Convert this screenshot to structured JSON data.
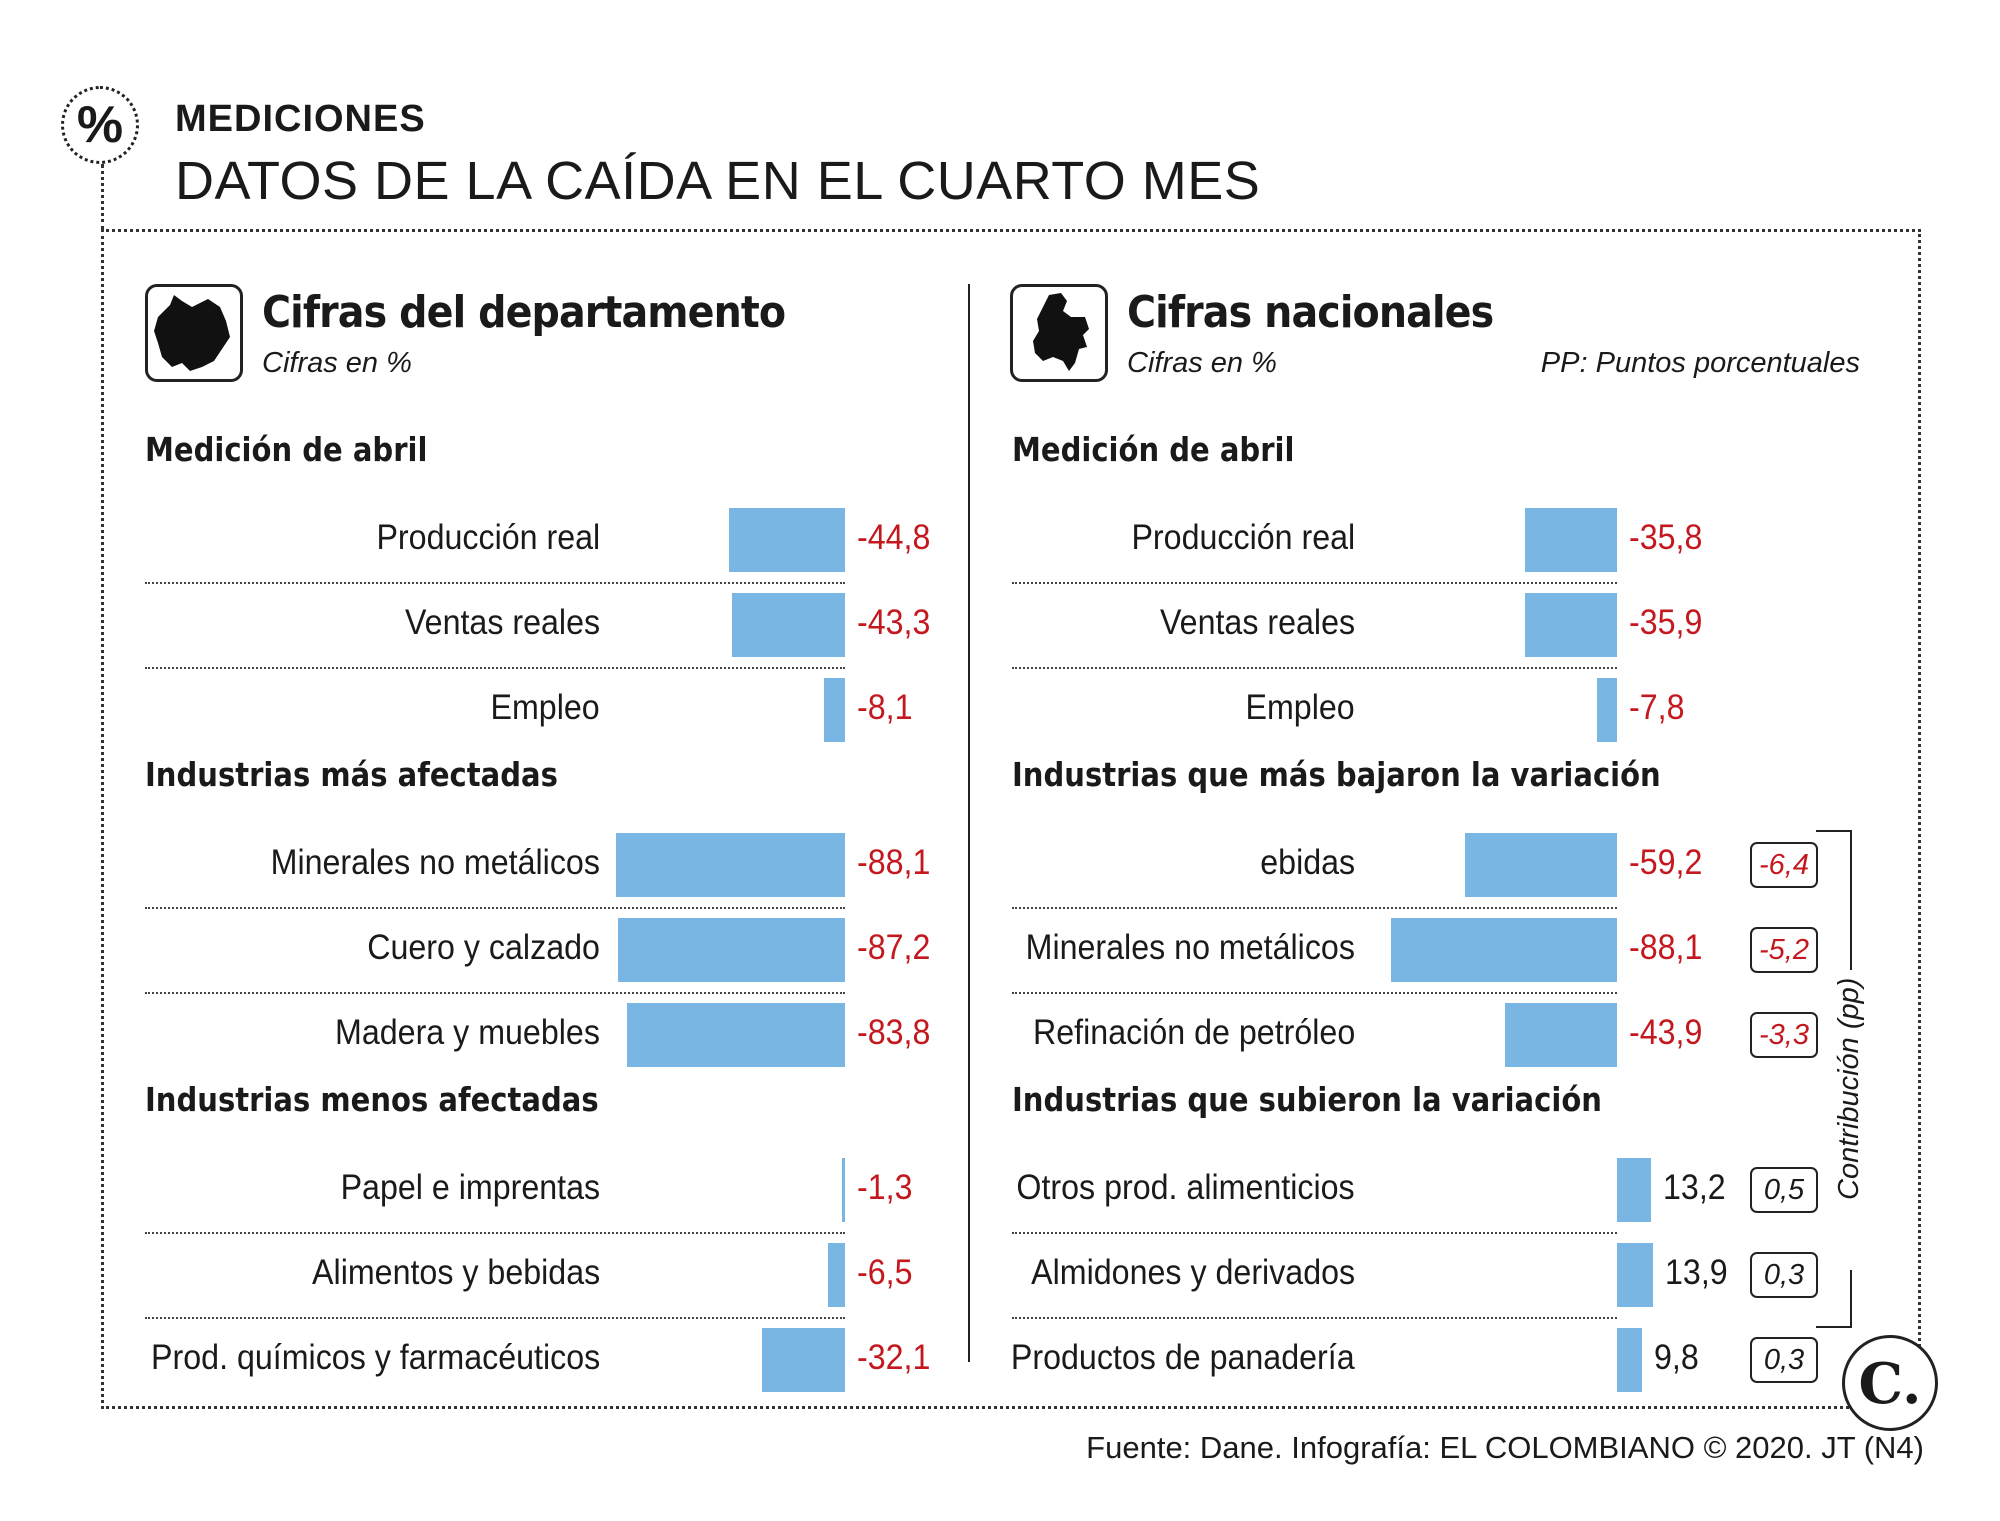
{
  "header": {
    "icon": "percent-icon",
    "kicker": "MEDICIONES",
    "title": "DATOS DE LA CAÍDA EN EL CUARTO MES"
  },
  "left": {
    "title": "Cifras del departamento",
    "subtitle": "Cifras en %",
    "map_icon": "antioquia-map-icon",
    "sections": [
      {
        "title": "Medición de abril",
        "rows": [
          {
            "label": "Producción real",
            "value": -44.8,
            "text": "-44,8"
          },
          {
            "label": "Ventas reales",
            "value": -43.3,
            "text": "-43,3"
          },
          {
            "label": "Empleo",
            "value": -8.1,
            "text": "-8,1"
          }
        ]
      },
      {
        "title": "Industrias más afectadas",
        "rows": [
          {
            "label": "Minerales no metálicos",
            "value": -88.1,
            "text": "-88,1"
          },
          {
            "label": "Cuero y calzado",
            "value": -87.2,
            "text": "-87,2"
          },
          {
            "label": "Madera y muebles",
            "value": -83.8,
            "text": "-83,8"
          }
        ]
      },
      {
        "title": "Industrias menos afectadas",
        "rows": [
          {
            "label": "Papel e imprentas",
            "value": -1.3,
            "text": "-1,3"
          },
          {
            "label": "Alimentos y bebidas",
            "value": -6.5,
            "text": "-6,5"
          },
          {
            "label": "Prod. químicos y farmacéuticos",
            "value": -32.1,
            "text": "-32,1"
          }
        ]
      }
    ]
  },
  "right": {
    "title": "Cifras nacionales",
    "subtitle": "Cifras en %",
    "note": "PP: Puntos porcentuales",
    "map_icon": "colombia-map-icon",
    "contribution_label": "Contribución (pp)",
    "sections": [
      {
        "title": "Medición de abril",
        "rows": [
          {
            "label": "Producción real",
            "value": -35.8,
            "text": "-35,8"
          },
          {
            "label": "Ventas reales",
            "value": -35.9,
            "text": "-35,9"
          },
          {
            "label": "Empleo",
            "value": -7.8,
            "text": "-7,8"
          }
        ]
      },
      {
        "title": "Industrias que más bajaron la variación",
        "rows": [
          {
            "label": "ebidas",
            "value": -59.2,
            "text": "-59,2",
            "pp": "-6,4"
          },
          {
            "label": "Minerales no metálicos",
            "value": -88.1,
            "text": "-88,1",
            "pp": "-5,2"
          },
          {
            "label": "Refinación de petróleo",
            "value": -43.9,
            "text": "-43,9",
            "pp": "-3,3"
          }
        ]
      },
      {
        "title": "Industrias que subieron la variación",
        "rows": [
          {
            "label": "Otros prod. alimenticios",
            "value": 13.2,
            "text": "13,2",
            "pp": "0,5"
          },
          {
            "label": "Almidones y derivados",
            "value": 13.9,
            "text": "13,9",
            "pp": "0,3"
          },
          {
            "label": "Productos de panadería",
            "value": 9.8,
            "text": "9,8",
            "pp": "0,3"
          }
        ]
      }
    ]
  },
  "source": "Fuente: Dane. Infografía: EL COLOMBIANO © 2020. JT (N4)",
  "logo_text": "C.",
  "chart_data": [
    {
      "type": "bar",
      "title": "Cifras del departamento",
      "ylabel": "Cifras en %",
      "categories": [
        "Producción real",
        "Ventas reales",
        "Empleo",
        "Minerales no metálicos",
        "Cuero y calzado",
        "Madera y muebles",
        "Papel e imprentas",
        "Alimentos y bebidas",
        "Prod. químicos y farmacéuticos"
      ],
      "values": [
        -44.8,
        -43.3,
        -8.1,
        -88.1,
        -87.2,
        -83.8,
        -1.3,
        -6.5,
        -32.1
      ]
    },
    {
      "type": "bar",
      "title": "Cifras nacionales",
      "ylabel": "Cifras en %",
      "categories": [
        "Producción real",
        "Ventas reales",
        "Empleo",
        "ebidas",
        "Minerales no metálicos",
        "Refinación de petróleo",
        "Otros prod. alimenticios",
        "Almidones y derivados",
        "Productos de panadería"
      ],
      "values": [
        -35.8,
        -35.9,
        -7.8,
        -59.2,
        -88.1,
        -43.9,
        13.2,
        13.9,
        9.8
      ],
      "contribution_pp": [
        null,
        null,
        null,
        -6.4,
        -5.2,
        -3.3,
        0.5,
        0.3,
        0.3
      ]
    }
  ],
  "colors": {
    "bar": "#7ab6e3",
    "negative": "#c4181f"
  }
}
